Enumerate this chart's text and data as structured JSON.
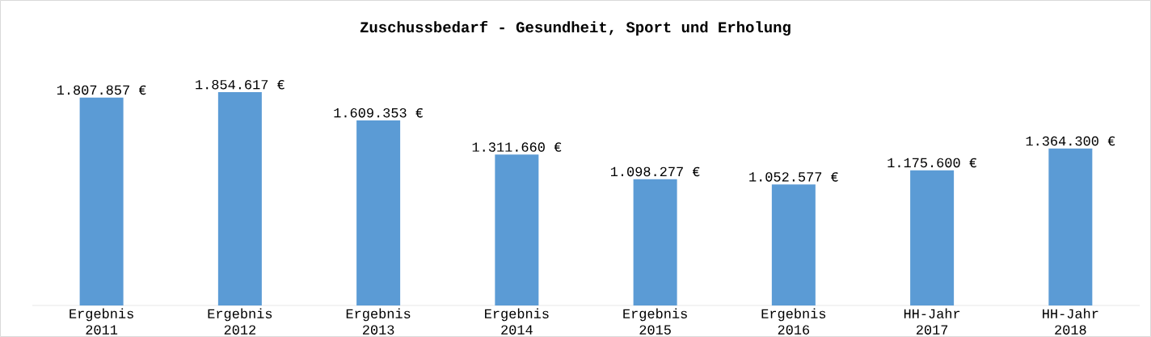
{
  "chart_data": {
    "type": "bar",
    "title": "Zuschussbedarf - Gesundheit, Sport und Erholung",
    "categories": [
      "Ergebnis 2011",
      "Ergebnis 2012",
      "Ergebnis 2013",
      "Ergebnis 2014",
      "Ergebnis 2015",
      "Ergebnis 2016",
      "HH-Jahr 2017",
      "HH-Jahr 2018"
    ],
    "values": [
      1807857,
      1854617,
      1609353,
      1311660,
      1098277,
      1052577,
      1175600,
      1364300
    ],
    "value_labels": [
      "1.807.857 €",
      "1.854.617 €",
      "1.609.353 €",
      "1.311.660 €",
      "1.098.277 €",
      "1.052.577 €",
      "1.175.600 €",
      "1.364.300 €"
    ],
    "color": "#5b9bd5"
  }
}
